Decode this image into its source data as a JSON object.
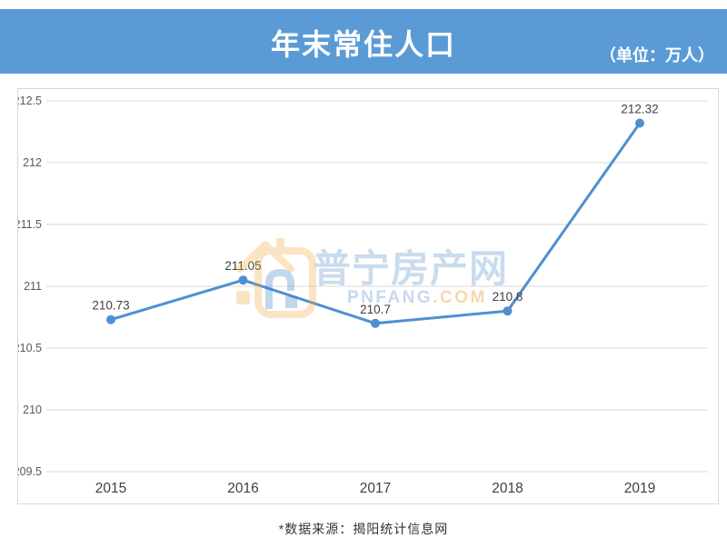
{
  "header": {
    "title": "年末常住人口",
    "unit_label": "（单位：万人）",
    "bg_color": "#5b9bd5",
    "text_color": "#ffffff"
  },
  "chart_data": {
    "type": "line",
    "title": "年末常住人口",
    "unit": "万人",
    "categories": [
      "2015",
      "2016",
      "2017",
      "2018",
      "2019"
    ],
    "values": [
      210.73,
      211.05,
      210.7,
      210.8,
      212.32
    ],
    "point_labels": [
      "210.73",
      "211.05",
      "210.7",
      "210.8",
      "212.32"
    ],
    "ylim": [
      209.5,
      212.5
    ],
    "ytick_step": 0.5,
    "ytick_labels": [
      "212.5",
      "212",
      "211.5",
      "211",
      "210.5",
      "210",
      "209.5"
    ],
    "grid": true,
    "legend": "none",
    "line_color": "#4f8fd2",
    "marker_color": "#4f8fd2",
    "grid_color": "#d9d9d9",
    "ytick_color": "#595959",
    "xtick_color": "#404040",
    "label_color": "#3f3f3f"
  },
  "watermark": {
    "logo_icon": "pnfang-house-logo",
    "cn_text": "普宁房产网",
    "en_text_main": "PNFANG",
    "en_text_suffix": ".COM",
    "cn_color": "#c9dcee",
    "en_main_color": "#c5d9ee",
    "en_suffix_color": "#f8d7ae",
    "orange": "#f5a93c",
    "blue": "#3a79c3"
  },
  "footer": {
    "source_note": "*数据来源：揭阳统计信息网"
  }
}
